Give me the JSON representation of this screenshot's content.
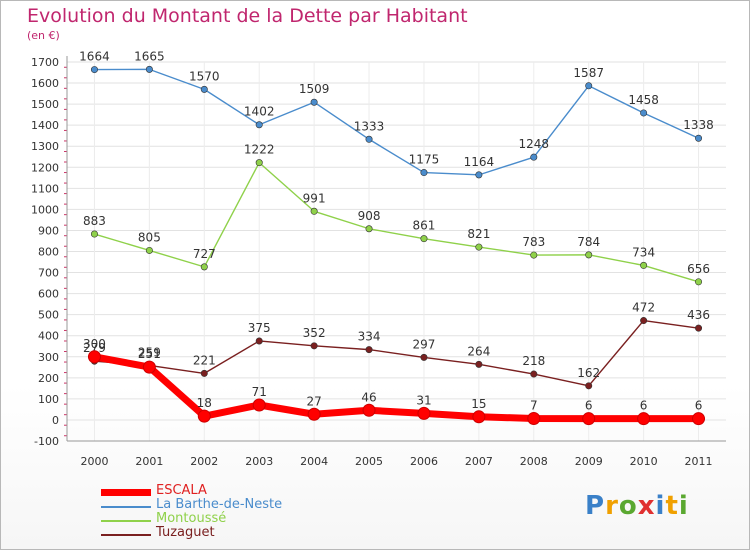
{
  "chart_data": {
    "type": "line",
    "title": "Evolution du Montant de la Dette par Habitant",
    "subtitle": "(en €)",
    "categories": [
      "2000",
      "2001",
      "2002",
      "2003",
      "2004",
      "2005",
      "2006",
      "2007",
      "2008",
      "2009",
      "2010",
      "2011"
    ],
    "ylim": [
      -100,
      1700
    ],
    "yticks": [
      -100,
      0,
      100,
      200,
      300,
      400,
      500,
      600,
      700,
      800,
      900,
      1000,
      1100,
      1200,
      1300,
      1400,
      1500,
      1600,
      1700
    ],
    "grid": true,
    "legend_position": "bottom-left",
    "series": [
      {
        "name": "ESCALA",
        "color": "#ff0000",
        "values": [
          300,
          251,
          18,
          71,
          27,
          46,
          31,
          15,
          7,
          6,
          6,
          6
        ]
      },
      {
        "name": "La Barthe-de-Neste",
        "color": "#4a8ccc",
        "values": [
          1664,
          1665,
          1570,
          1402,
          1509,
          1333,
          1175,
          1164,
          1248,
          1587,
          1458,
          1338
        ]
      },
      {
        "name": "Montoussé",
        "color": "#8fd14a",
        "values": [
          883,
          805,
          727,
          1222,
          991,
          908,
          861,
          821,
          783,
          784,
          734,
          656
        ]
      },
      {
        "name": "Tuzaguet",
        "color": "#7a2020",
        "values": [
          279,
          259,
          221,
          375,
          352,
          334,
          297,
          264,
          218,
          162,
          472,
          436
        ]
      }
    ]
  },
  "logo": {
    "letters": [
      {
        "ch": "P",
        "color": "#3a80c8"
      },
      {
        "ch": "r",
        "color": "#f0a000"
      },
      {
        "ch": "o",
        "color": "#5aa830"
      },
      {
        "ch": "x",
        "color": "#e03030"
      },
      {
        "ch": "i",
        "color": "#3a80c8"
      },
      {
        "ch": "t",
        "color": "#f0a000"
      },
      {
        "ch": "i",
        "color": "#5aa830"
      }
    ]
  }
}
